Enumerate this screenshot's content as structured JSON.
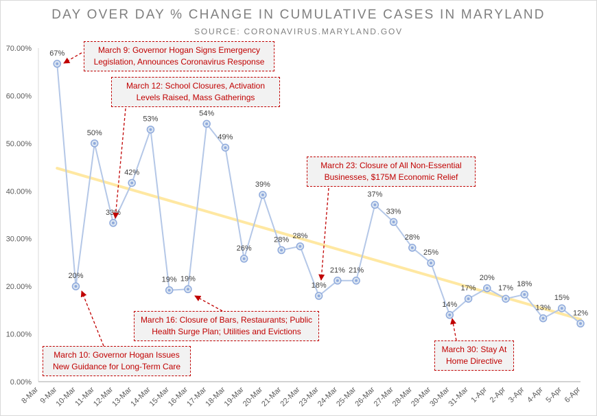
{
  "chart_data": {
    "type": "line",
    "title": "DAY OVER DAY % CHANGE IN CUMULATIVE CASES IN MARYLAND",
    "subtitle": "SOURCE: CORONAVIRUS.MARYLAND.GOV",
    "categories": [
      "8-Mar",
      "9-Mar",
      "10-Mar",
      "11-Mar",
      "12-Mar",
      "13-Mar",
      "14-Mar",
      "15-Mar",
      "16-Mar",
      "17-Mar",
      "18-Mar",
      "19-Mar",
      "20-Mar",
      "21-Mar",
      "22-Mar",
      "23-Mar",
      "24-Mar",
      "25-Mar",
      "26-Mar",
      "27-Mar",
      "28-Mar",
      "29-Mar",
      "30-Mar",
      "31-Mar",
      "1-Apr",
      "2-Apr",
      "3-Apr",
      "4-Apr",
      "5-Apr",
      "6-Apr"
    ],
    "series": [
      {
        "values": [
          null,
          66.7,
          20.0,
          50.0,
          33.3,
          41.7,
          52.9,
          19.2,
          19.4,
          54.1,
          49.1,
          25.8,
          39.2,
          27.6,
          28.4,
          18.0,
          21.2,
          21.2,
          37.1,
          33.5,
          28.1,
          24.9,
          14.0,
          17.4,
          19.6,
          17.4,
          18.3,
          13.3,
          15.4,
          12.2
        ],
        "labels": [
          "",
          "67%",
          "20%",
          "50%",
          "33%",
          "42%",
          "53%",
          "19%",
          "19%",
          "54%",
          "49%",
          "26%",
          "39%",
          "28%",
          "28%",
          "18%",
          "21%",
          "21%",
          "37%",
          "33%",
          "28%",
          "25%",
          "14%",
          "17%",
          "20%",
          "17%",
          "18%",
          "13%",
          "15%",
          "12%"
        ],
        "color": "#b4c7e7"
      }
    ],
    "trendline": {
      "type": "linear",
      "color": "#ffe699"
    },
    "ylim": [
      0,
      70
    ],
    "yticks": [
      "0.00%",
      "10.00%",
      "20.00%",
      "30.00%",
      "40.00%",
      "50.00%",
      "60.00%",
      "70.00%"
    ],
    "grid": false,
    "annotations": [
      {
        "text": "March 9: Governor Hogan Signs Emergency Legislation, Announces Coronavirus Response",
        "target": "9-Mar"
      },
      {
        "text": "March 12: School Closures, Activation Levels Raised, Mass Gatherings",
        "target": "12-Mar"
      },
      {
        "text": "March 10: Governor Hogan Issues New Guidance for Long-Term Care",
        "target": "10-Mar"
      },
      {
        "text": "March 16: Closure of Bars, Restaurants; Public Health Surge Plan; Utilities and Evictions",
        "target": "16-Mar"
      },
      {
        "text": "March 23: Closure of All Non-Essential Businesses, $175M Economic Relief",
        "target": "23-Mar"
      },
      {
        "text": "March 30: Stay At Home Directive",
        "target": "30-Mar"
      }
    ],
    "colors": {
      "callout_text": "#c00000",
      "callout_bg": "#f2f2f2",
      "title": "#7f7f7f"
    }
  }
}
